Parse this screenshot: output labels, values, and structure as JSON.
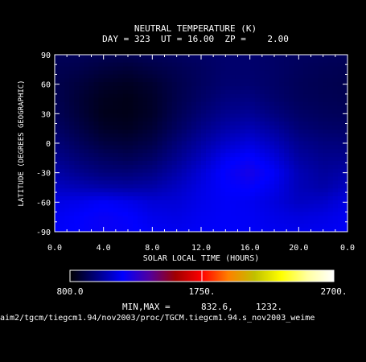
{
  "chart_data": {
    "type": "heatmap",
    "title": "NEUTRAL TEMPERATURE (K)",
    "subtitle": "DAY = 323  UT = 16.00  ZP =    2.00",
    "xlabel": "SOLAR LOCAL TIME (HOURS)",
    "ylabel": "LATITUDE (DEGREES GEOGRAPHIC)",
    "xlim": [
      0,
      24
    ],
    "ylim": [
      -90,
      90
    ],
    "x_ticks": [
      "0.0",
      "4.0",
      "8.0",
      "12.0",
      "16.0",
      "20.0",
      "0.0"
    ],
    "x_tick_values": [
      0,
      4,
      8,
      12,
      16,
      20,
      24
    ],
    "y_ticks": [
      "90",
      "60",
      "30",
      "0",
      "-30",
      "-60",
      "-90"
    ],
    "y_tick_values": [
      90,
      60,
      30,
      0,
      -30,
      -60,
      -90
    ],
    "colorbar": {
      "min": 800,
      "max": 2700,
      "mid": 1750,
      "labels": [
        "800.0",
        "1750.",
        "2700."
      ],
      "colors": [
        "#000000",
        "#000080",
        "#0000ff",
        "#5000a0",
        "#a00000",
        "#ff0000",
        "#ff8000",
        "#c0c000",
        "#ffff00",
        "#ffffa0",
        "#ffffff"
      ]
    },
    "minmax_label": "MIN,MAX =",
    "min_value": "832.6,",
    "max_value": "1232.",
    "footer_path": "aim2/tgcm/tiegcm1.94/nov2003/proc/TGCM.tiegcm1.94.s_nov2003_weime",
    "field_values": {
      "lt": [
        0,
        2,
        4,
        6,
        8,
        10,
        12,
        14,
        16,
        18,
        20,
        22,
        24
      ],
      "lat": [
        90,
        75,
        60,
        45,
        30,
        15,
        0,
        -15,
        -30,
        -45,
        -60,
        -75,
        -90
      ],
      "temps": [
        [
          930,
          930,
          920,
          920,
          930,
          940,
          950,
          960,
          960,
          950,
          940,
          935,
          930
        ],
        [
          920,
          910,
          890,
          880,
          900,
          920,
          940,
          960,
          960,
          950,
          935,
          925,
          920
        ],
        [
          915,
          890,
          860,
          850,
          870,
          910,
          940,
          965,
          965,
          950,
          930,
          920,
          915
        ],
        [
          920,
          880,
          845,
          835,
          860,
          910,
          950,
          985,
          990,
          960,
          935,
          925,
          920
        ],
        [
          930,
          885,
          840,
          835,
          860,
          920,
          970,
          1010,
          1020,
          985,
          950,
          935,
          930
        ],
        [
          950,
          905,
          860,
          850,
          880,
          940,
          1000,
          1050,
          1070,
          1030,
          975,
          955,
          950
        ],
        [
          980,
          935,
          895,
          885,
          910,
          975,
          1040,
          1100,
          1130,
          1080,
          1010,
          985,
          980
        ],
        [
          1010,
          970,
          940,
          925,
          950,
          1010,
          1080,
          1160,
          1190,
          1130,
          1040,
          1010,
          1010
        ],
        [
          1050,
          1010,
          980,
          975,
          995,
          1050,
          1120,
          1190,
          1232,
          1170,
          1070,
          1030,
          1050
        ],
        [
          1090,
          1070,
          1050,
          1040,
          1050,
          1090,
          1140,
          1180,
          1190,
          1150,
          1075,
          1050,
          1090
        ],
        [
          1140,
          1150,
          1170,
          1150,
          1120,
          1120,
          1150,
          1170,
          1160,
          1130,
          1090,
          1100,
          1140
        ],
        [
          1160,
          1180,
          1200,
          1185,
          1150,
          1140,
          1160,
          1170,
          1165,
          1145,
          1130,
          1140,
          1160
        ],
        [
          1170,
          1185,
          1200,
          1190,
          1170,
          1160,
          1170,
          1175,
          1170,
          1160,
          1155,
          1160,
          1170
        ]
      ]
    }
  }
}
